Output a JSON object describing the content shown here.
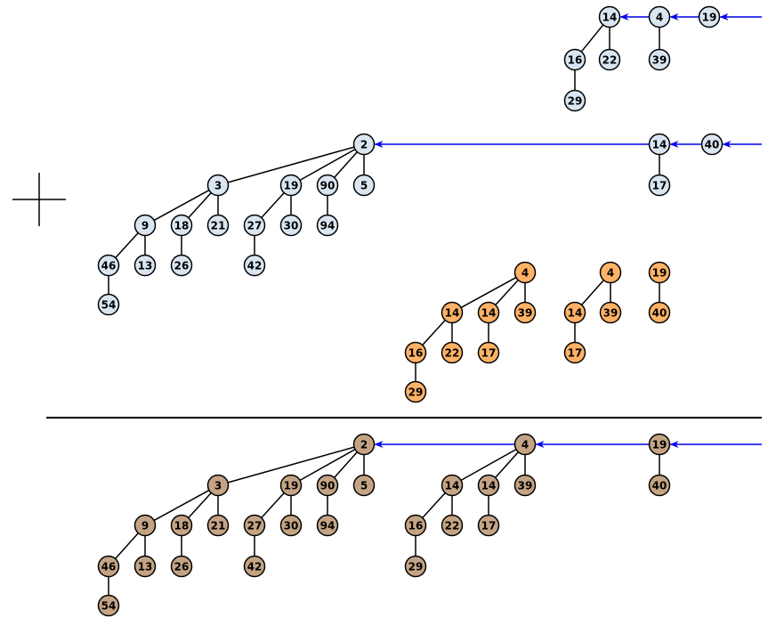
{
  "colors": {
    "blue_nodes": "#d9e6f2",
    "orange_nodes": "#ffb266",
    "brown_nodes": "#c4a484",
    "pointer_arrow": "#0000ee",
    "edge": "#000000"
  },
  "plus_sign": "+",
  "heaps": [
    {
      "id": "top-heap",
      "color": "blue",
      "nodes": [
        {
          "id": "a14",
          "label": "14"
        },
        {
          "id": "a4",
          "label": "4"
        },
        {
          "id": "a19",
          "label": "19"
        },
        {
          "id": "a16",
          "label": "16"
        },
        {
          "id": "a22",
          "label": "22"
        },
        {
          "id": "a39",
          "label": "39"
        },
        {
          "id": "a29",
          "label": "29"
        }
      ],
      "edges": [
        [
          "a14",
          "a16"
        ],
        [
          "a14",
          "a22"
        ],
        [
          "a16",
          "a29"
        ],
        [
          "a4",
          "a39"
        ]
      ],
      "root_list": [
        "a14",
        "a4",
        "a19"
      ]
    },
    {
      "id": "second-heap",
      "color": "blue",
      "nodes": [
        {
          "id": "b2",
          "label": "2"
        },
        {
          "id": "b3",
          "label": "3"
        },
        {
          "id": "b19",
          "label": "19"
        },
        {
          "id": "b90",
          "label": "90"
        },
        {
          "id": "b5",
          "label": "5"
        },
        {
          "id": "b9",
          "label": "9"
        },
        {
          "id": "b18",
          "label": "18"
        },
        {
          "id": "b21",
          "label": "21"
        },
        {
          "id": "b27",
          "label": "27"
        },
        {
          "id": "b30",
          "label": "30"
        },
        {
          "id": "b94",
          "label": "94"
        },
        {
          "id": "b46",
          "label": "46"
        },
        {
          "id": "b13",
          "label": "13"
        },
        {
          "id": "b26",
          "label": "26"
        },
        {
          "id": "b42",
          "label": "42"
        },
        {
          "id": "b54",
          "label": "54"
        },
        {
          "id": "b14",
          "label": "14"
        },
        {
          "id": "b40",
          "label": "40"
        },
        {
          "id": "b17",
          "label": "17"
        }
      ],
      "edges": [
        [
          "b2",
          "b3"
        ],
        [
          "b2",
          "b19"
        ],
        [
          "b2",
          "b90"
        ],
        [
          "b2",
          "b5"
        ],
        [
          "b3",
          "b9"
        ],
        [
          "b3",
          "b18"
        ],
        [
          "b3",
          "b21"
        ],
        [
          "b19",
          "b27"
        ],
        [
          "b19",
          "b30"
        ],
        [
          "b90",
          "b94"
        ],
        [
          "b9",
          "b46"
        ],
        [
          "b9",
          "b13"
        ],
        [
          "b18",
          "b26"
        ],
        [
          "b27",
          "b42"
        ],
        [
          "b46",
          "b54"
        ],
        [
          "b14",
          "b17"
        ]
      ],
      "root_list": [
        "b2",
        "b14",
        "b40"
      ]
    },
    {
      "id": "intermediate-heap",
      "color": "orange",
      "nodes": [
        {
          "id": "c4a",
          "label": "4"
        },
        {
          "id": "c14a",
          "label": "14"
        },
        {
          "id": "c14b",
          "label": "14"
        },
        {
          "id": "c39a",
          "label": "39"
        },
        {
          "id": "c16",
          "label": "16"
        },
        {
          "id": "c22",
          "label": "22"
        },
        {
          "id": "c17a",
          "label": "17"
        },
        {
          "id": "c29",
          "label": "29"
        },
        {
          "id": "c4b",
          "label": "4"
        },
        {
          "id": "c14c",
          "label": "14"
        },
        {
          "id": "c39b",
          "label": "39"
        },
        {
          "id": "c17b",
          "label": "17"
        },
        {
          "id": "c19",
          "label": "19"
        },
        {
          "id": "c40",
          "label": "40"
        }
      ],
      "edges": [
        [
          "c4a",
          "c14a"
        ],
        [
          "c4a",
          "c14b"
        ],
        [
          "c4a",
          "c39a"
        ],
        [
          "c14a",
          "c16"
        ],
        [
          "c14a",
          "c22"
        ],
        [
          "c16",
          "c29"
        ],
        [
          "c14b",
          "c17a"
        ],
        [
          "c4b",
          "c14c"
        ],
        [
          "c4b",
          "c39b"
        ],
        [
          "c14c",
          "c17b"
        ],
        [
          "c19",
          "c40"
        ]
      ],
      "root_list": []
    },
    {
      "id": "result-heap",
      "color": "brown",
      "nodes": [
        {
          "id": "d2",
          "label": "2"
        },
        {
          "id": "d3",
          "label": "3"
        },
        {
          "id": "d19",
          "label": "19"
        },
        {
          "id": "d90",
          "label": "90"
        },
        {
          "id": "d5",
          "label": "5"
        },
        {
          "id": "d9",
          "label": "9"
        },
        {
          "id": "d18",
          "label": "18"
        },
        {
          "id": "d21",
          "label": "21"
        },
        {
          "id": "d27",
          "label": "27"
        },
        {
          "id": "d30",
          "label": "30"
        },
        {
          "id": "d94",
          "label": "94"
        },
        {
          "id": "d46",
          "label": "46"
        },
        {
          "id": "d13",
          "label": "13"
        },
        {
          "id": "d26",
          "label": "26"
        },
        {
          "id": "d42",
          "label": "42"
        },
        {
          "id": "d54",
          "label": "54"
        },
        {
          "id": "d4",
          "label": "4"
        },
        {
          "id": "d14a",
          "label": "14"
        },
        {
          "id": "d14b",
          "label": "14"
        },
        {
          "id": "d39",
          "label": "39"
        },
        {
          "id": "d16",
          "label": "16"
        },
        {
          "id": "d22",
          "label": "22"
        },
        {
          "id": "d17",
          "label": "17"
        },
        {
          "id": "d29",
          "label": "29"
        },
        {
          "id": "d19b",
          "label": "19"
        },
        {
          "id": "d40",
          "label": "40"
        }
      ],
      "edges": [
        [
          "d2",
          "d3"
        ],
        [
          "d2",
          "d19"
        ],
        [
          "d2",
          "d90"
        ],
        [
          "d2",
          "d5"
        ],
        [
          "d3",
          "d9"
        ],
        [
          "d3",
          "d18"
        ],
        [
          "d3",
          "d21"
        ],
        [
          "d19",
          "d27"
        ],
        [
          "d19",
          "d30"
        ],
        [
          "d90",
          "d94"
        ],
        [
          "d9",
          "d46"
        ],
        [
          "d9",
          "d13"
        ],
        [
          "d18",
          "d26"
        ],
        [
          "d27",
          "d42"
        ],
        [
          "d46",
          "d54"
        ],
        [
          "d4",
          "d14a"
        ],
        [
          "d4",
          "d14b"
        ],
        [
          "d4",
          "d39"
        ],
        [
          "d14a",
          "d16"
        ],
        [
          "d14a",
          "d22"
        ],
        [
          "d16",
          "d29"
        ],
        [
          "d14b",
          "d17"
        ],
        [
          "d19b",
          "d40"
        ]
      ],
      "root_list": [
        "d2",
        "d4",
        "d19b"
      ]
    }
  ]
}
